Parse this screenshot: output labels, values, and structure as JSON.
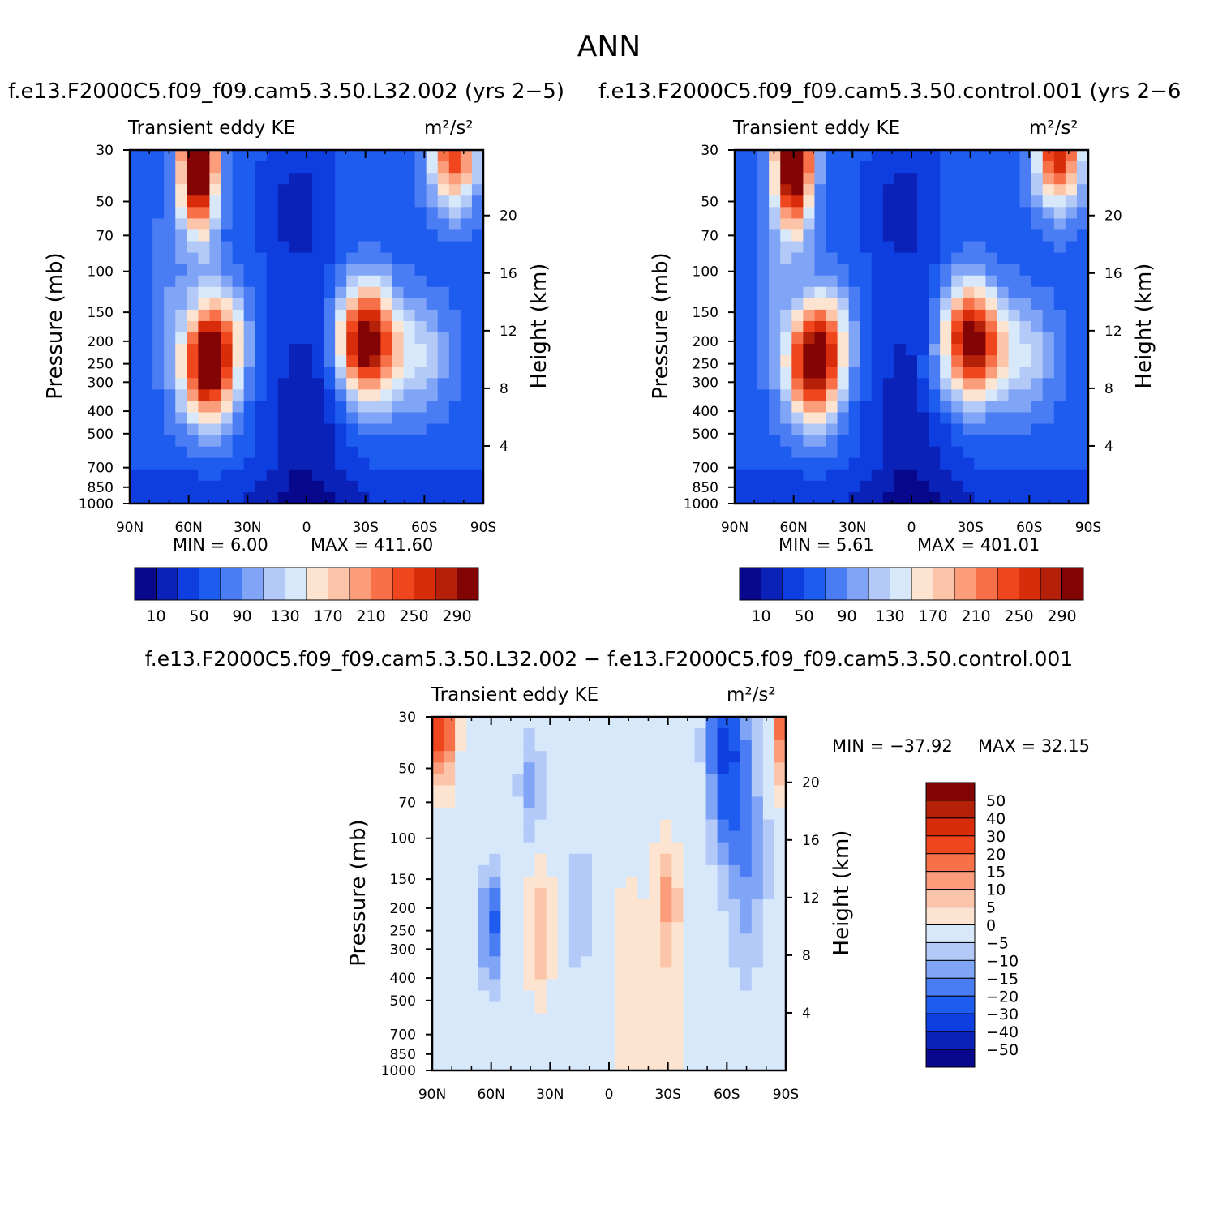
{
  "figure": {
    "title": "ANN",
    "difference_title": "f.e13.F2000C5.f09_f09.cam5.3.50.L32.002 − f.e13.F2000C5.f09_f09.cam5.3.50.control.001"
  },
  "colors": {
    "abs_colorbar": [
      "#08088c",
      "#0a22b8",
      "#0e3ee0",
      "#1e5cf0",
      "#4a7cf4",
      "#80a4f6",
      "#b3c9f7",
      "#d8e8fb",
      "#fde4d0",
      "#fcc4a8",
      "#fb9c7a",
      "#f87048",
      "#f0461e",
      "#d82c0a",
      "#b42008",
      "#820404"
    ],
    "diff_colorbar": [
      "#08088c",
      "#0a22b8",
      "#0e3ee0",
      "#1e5cf0",
      "#4a7cf4",
      "#80a4f6",
      "#b3c9f7",
      "#d8e8fb",
      "#fde4d0",
      "#fcc4a8",
      "#fb9c7a",
      "#f87048",
      "#f0461e",
      "#d82c0a",
      "#b42008",
      "#820404"
    ]
  },
  "chart_data": [
    {
      "type": "heatmap",
      "title": "f.e13.F2000C5.f09_f09.cam5.3.50.L32.002  (yrs 2−5)",
      "variable": "Transient eddy KE",
      "units": "m²/s²",
      "xlabel": "",
      "ylabel": "Pressure  (mb)",
      "ylabel_right": "Height  (km)",
      "x_ticks": [
        "90N",
        "60N",
        "30N",
        "0",
        "30S",
        "60S",
        "90S"
      ],
      "y_ticks": [
        "30",
        "50",
        "70",
        "100",
        "150",
        "200",
        "250",
        "300",
        "400",
        "500",
        "700",
        "850",
        "1000"
      ],
      "y_right_ticks": [
        "20",
        "16",
        "12",
        "8",
        "4"
      ],
      "ylim": [
        1000,
        30
      ],
      "y_scale": "log",
      "min_label": "MIN =    6.00",
      "max_label": "MAX =  411.60",
      "colorbar_levels": [
        "10",
        "50",
        "90",
        "130",
        "170",
        "210",
        "250",
        "290"
      ],
      "colorbar_bounds": [
        0,
        10,
        30,
        50,
        70,
        90,
        110,
        130,
        150,
        170,
        190,
        210,
        230,
        250,
        270,
        290,
        310
      ],
      "features": [
        {
          "lat": -30,
          "p": 200,
          "value": 320
        },
        {
          "lat": 50,
          "p": 250,
          "value": 330
        },
        {
          "lat": 55,
          "p": 30,
          "value": 410
        },
        {
          "lat": -75,
          "p": 30,
          "value": 250
        }
      ]
    },
    {
      "type": "heatmap",
      "title": "f.e13.F2000C5.f09_f09.cam5.3.50.control.001  (yrs 2−6",
      "variable": "Transient eddy KE",
      "units": "m²/s²",
      "xlabel": "",
      "ylabel": "Pressure  (mb)",
      "ylabel_right": "Height  (km)",
      "x_ticks": [
        "90N",
        "60N",
        "30N",
        "0",
        "30S",
        "60S",
        "90S"
      ],
      "y_ticks": [
        "30",
        "50",
        "70",
        "100",
        "150",
        "200",
        "250",
        "300",
        "400",
        "500",
        "700",
        "850",
        "1000"
      ],
      "y_right_ticks": [
        "20",
        "16",
        "12",
        "8",
        "4"
      ],
      "ylim": [
        1000,
        30
      ],
      "y_scale": "log",
      "min_label": "MIN =    5.61",
      "max_label": "MAX =  401.01",
      "colorbar_levels": [
        "10",
        "50",
        "90",
        "130",
        "170",
        "210",
        "250",
        "290"
      ],
      "colorbar_bounds": [
        0,
        10,
        30,
        50,
        70,
        90,
        110,
        130,
        150,
        170,
        190,
        210,
        230,
        250,
        270,
        290,
        310
      ],
      "features": [
        {
          "lat": -30,
          "p": 200,
          "value": 310
        },
        {
          "lat": 50,
          "p": 250,
          "value": 320
        },
        {
          "lat": 60,
          "p": 30,
          "value": 400
        },
        {
          "lat": -75,
          "p": 30,
          "value": 270
        }
      ]
    },
    {
      "type": "heatmap",
      "title": "f.e13.F2000C5.f09_f09.cam5.3.50.L32.002 − f.e13.F2000C5.f09_f09.cam5.3.50.control.001",
      "variable": "Transient eddy KE",
      "units": "m²/s²",
      "xlabel": "",
      "ylabel": "Pressure  (mb)",
      "ylabel_right": "Height  (km)",
      "x_ticks": [
        "90N",
        "60N",
        "30N",
        "0",
        "30S",
        "60S",
        "90S"
      ],
      "y_ticks": [
        "30",
        "50",
        "70",
        "100",
        "150",
        "200",
        "250",
        "300",
        "400",
        "500",
        "700",
        "850",
        "1000"
      ],
      "y_right_ticks": [
        "20",
        "16",
        "12",
        "8",
        "4"
      ],
      "ylim": [
        1000,
        30
      ],
      "y_scale": "log",
      "min_label": "MIN = −37.92",
      "max_label": "MAX =   32.15",
      "colorbar_levels": [
        "50",
        "40",
        "30",
        "20",
        "15",
        "10",
        "5",
        "0",
        "−5",
        "−10",
        "−15",
        "−20",
        "−30",
        "−40",
        "−50"
      ],
      "colorbar_bounds": [
        -60,
        -50,
        -40,
        -30,
        -20,
        -15,
        -10,
        -5,
        0,
        5,
        10,
        15,
        20,
        30,
        40,
        50,
        60
      ],
      "features": [
        {
          "lat": -60,
          "p": 40,
          "value": -30
        },
        {
          "lat": -30,
          "p": 180,
          "value": 12
        },
        {
          "lat": 60,
          "p": 240,
          "value": -22
        },
        {
          "lat": 85,
          "p": 35,
          "value": 28
        },
        {
          "lat": -88,
          "p": 35,
          "value": 20
        }
      ]
    }
  ]
}
